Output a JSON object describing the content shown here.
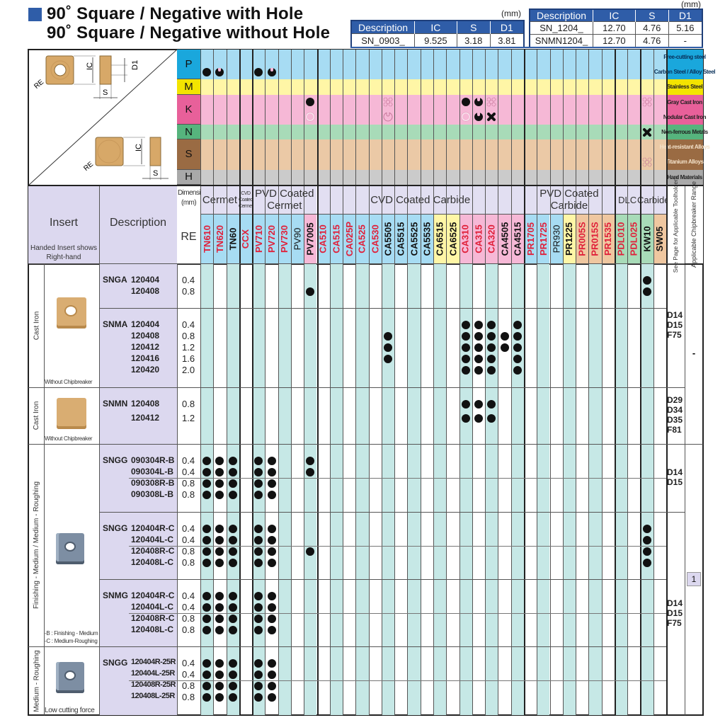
{
  "title": {
    "line1": "90˚ Square / Negative with Hole",
    "line2": "90˚ Square / Negative without Hole"
  },
  "dim_table_1": {
    "unit": "(mm)",
    "headers": [
      "Description",
      "IC",
      "S",
      "D1"
    ],
    "rows": [
      [
        "SN_0903_",
        "9.525",
        "3.18",
        "3.81"
      ]
    ]
  },
  "dim_table_2": {
    "unit": "(mm)",
    "headers": [
      "Description",
      "IC",
      "S",
      "D1"
    ],
    "rows": [
      [
        "SN_1204_",
        "12.70",
        "4.76",
        "5.16"
      ],
      [
        "SNMN1204_",
        "12.70",
        "4.76",
        "-"
      ]
    ]
  },
  "diagram": {
    "ic": "IC",
    "d1": "D1",
    "s": "S",
    "re": "RE"
  },
  "materials": [
    {
      "letter": "P",
      "color": "#1aa7dc",
      "light": "#a7dcf3",
      "label_color": "#1aa7dc",
      "rows": [
        {
          "label": "Free-cutting steel",
          "marks": {}
        },
        {
          "label": "Carbon Steel / Alloy Steel",
          "marks": {
            "TN610": "full",
            "TN620": "notch",
            "PV710": "full",
            "PV720": "notch"
          }
        }
      ]
    },
    {
      "letter": "M",
      "color": "#f3e400",
      "light": "#fff6a6",
      "label_color": "#f3e400",
      "rows": [
        {
          "label": "Stainless Steel",
          "marks": {}
        }
      ]
    },
    {
      "letter": "K",
      "color": "#e8609a",
      "light": "#f6b8d6",
      "label_color": "#e8609a",
      "rows": [
        {
          "label": "Gray Cast Iron",
          "marks": {
            "PV7005": "full",
            "CA5505": "dotted-cross",
            "CA310": "full",
            "CA315": "notch",
            "CA320": "dotted-cross",
            "KW10": "dotted-cross"
          }
        },
        {
          "label": "Nodular Cast Iron",
          "marks": {
            "PV7005": "outline",
            "CA5505": "outline-notch",
            "CA310": "outline",
            "CA315": "notch",
            "CA320": "cross"
          }
        }
      ]
    },
    {
      "letter": "N",
      "color": "#56b47d",
      "light": "#a8dbb8",
      "label_color": "#56b47d",
      "rows": [
        {
          "label": "Non-ferrous Metals",
          "marks": {
            "KW10": "cross"
          }
        }
      ]
    },
    {
      "letter": "S",
      "color": "#9a6b43",
      "light": "#ebc9a6",
      "label_color": "#9a6b43",
      "rows": [
        {
          "label": "Heat-resistant Alloys",
          "marks": {}
        },
        {
          "label": "Titanium Alloys",
          "marks": {
            "KW10": "dotted-cross"
          }
        }
      ]
    },
    {
      "letter": "H",
      "color": "#a9a9a9",
      "light": "#cbcbcb",
      "label_color": "#a9a9a9",
      "rows": [
        {
          "label": "Hard Materials",
          "marks": {}
        }
      ]
    }
  ],
  "header": {
    "insert": "Insert",
    "insert_note": "Handed Insert shows Right-hand",
    "description": "Description",
    "dimension": "Dimension (mm)",
    "re": "RE",
    "see_page": "See Page for Applicable Toolholders",
    "chipbreaker_range": "Applicable Chipbreaker Range",
    "groups": [
      {
        "label": "Cermet",
        "span": 3
      },
      {
        "label": "CVD Coated Cermet",
        "span": 1
      },
      {
        "label": "PVD Coated Cermet",
        "span": 5
      },
      {
        "label": "CVD Coated Carbide",
        "span": 16
      },
      {
        "label": "PVD Coated Carbide",
        "span": 7
      },
      {
        "label": "DLC",
        "span": 2
      },
      {
        "label": "Carbide",
        "span": 2
      }
    ]
  },
  "grade_colors": {
    "blue": "#a7dcf3",
    "pink": "#f6b8d6",
    "yellow": "#fff6a6",
    "tan": "#efc7a0",
    "green": "#a8dbb8",
    "red_text": "#e0203a",
    "black_text": "#111111",
    "column_shade": "#c6e8e6"
  },
  "grades": [
    {
      "name": "TN610",
      "bg": "blue",
      "text": "red"
    },
    {
      "name": "TN620",
      "bg": "blue",
      "text": "red"
    },
    {
      "name": "TN60",
      "bg": "blue",
      "text": "black"
    },
    {
      "name": "CCX",
      "bg": "blue",
      "text": "red"
    },
    {
      "name": "PV710",
      "bg": "blue",
      "text": "red"
    },
    {
      "name": "PV720",
      "bg": "blue",
      "text": "red"
    },
    {
      "name": "PV730",
      "bg": "blue",
      "text": "red"
    },
    {
      "name": "PV90",
      "bg": "blue",
      "text": "black-light"
    },
    {
      "name": "PV7005",
      "bg": "pink",
      "text": "black"
    },
    {
      "name": "CA510",
      "bg": "blue",
      "text": "red"
    },
    {
      "name": "CA515",
      "bg": "blue",
      "text": "red"
    },
    {
      "name": "CA025P",
      "bg": "blue",
      "text": "red"
    },
    {
      "name": "CA525",
      "bg": "blue",
      "text": "red"
    },
    {
      "name": "CA530",
      "bg": "blue",
      "text": "red"
    },
    {
      "name": "CA5505",
      "bg": "blue",
      "text": "black"
    },
    {
      "name": "CA5515",
      "bg": "blue",
      "text": "black"
    },
    {
      "name": "CA5525",
      "bg": "blue",
      "text": "black"
    },
    {
      "name": "CA5535",
      "bg": "blue",
      "text": "black"
    },
    {
      "name": "CA6515",
      "bg": "yellow",
      "text": "black"
    },
    {
      "name": "CA6525",
      "bg": "yellow",
      "text": "black"
    },
    {
      "name": "CA310",
      "bg": "pink",
      "text": "red"
    },
    {
      "name": "CA315",
      "bg": "pink",
      "text": "red"
    },
    {
      "name": "CA320",
      "bg": "pink",
      "text": "red"
    },
    {
      "name": "CA4505",
      "bg": "pink",
      "text": "black"
    },
    {
      "name": "CA4515",
      "bg": "pink",
      "text": "black"
    },
    {
      "name": "PR1705",
      "bg": "blue",
      "text": "red"
    },
    {
      "name": "PR1725",
      "bg": "blue",
      "text": "red"
    },
    {
      "name": "PR930",
      "bg": "blue",
      "text": "black-light"
    },
    {
      "name": "PR1225",
      "bg": "yellow",
      "text": "black"
    },
    {
      "name": "PR005S",
      "bg": "tan",
      "text": "red"
    },
    {
      "name": "PR015S",
      "bg": "tan",
      "text": "red"
    },
    {
      "name": "PR1535",
      "bg": "tan",
      "text": "red"
    },
    {
      "name": "PDL010",
      "bg": "green",
      "text": "red"
    },
    {
      "name": "PDL025",
      "bg": "green",
      "text": "red"
    },
    {
      "name": "KW10",
      "bg": "green",
      "text": "black"
    },
    {
      "name": "SW05",
      "bg": "tan",
      "text": "black"
    }
  ],
  "categories": [
    {
      "label": "Cast Iron",
      "image": "gold-with-hole",
      "caption": [
        "Without Chipbreaker"
      ]
    },
    {
      "label": "Cast Iron",
      "image": "gold-without-hole",
      "caption": [
        "Without Chipbreaker"
      ]
    },
    {
      "label": "Finishing - Medium / Medium - Roughing",
      "image": "steel-with-chipbreaker",
      "caption": [
        "-B : Finishing - Medium",
        "-C : Medium-Roughing"
      ]
    },
    {
      "label": "Medium - Roughing",
      "image": "steel-low-force",
      "caption": [
        "Low cutting force"
      ]
    }
  ],
  "groups": [
    {
      "series": "SNGA",
      "rows": [
        {
          "code": "120404",
          "re": "0.4",
          "dots": [
            "KW10"
          ]
        },
        {
          "code": "120408",
          "re": "0.8",
          "dots": [
            "PV7005",
            "KW10"
          ]
        }
      ]
    },
    {
      "series": "SNMA",
      "rows": [
        {
          "code": "120404",
          "re": "0.4",
          "dots": [
            "CA310",
            "CA315",
            "CA320",
            "CA4515"
          ]
        },
        {
          "code": "120408",
          "re": "0.8",
          "dots": [
            "CA5505",
            "CA310",
            "CA315",
            "CA320",
            "CA4505",
            "CA4515"
          ]
        },
        {
          "code": "120412",
          "re": "1.2",
          "dots": [
            "CA5505",
            "CA310",
            "CA315",
            "CA320",
            "CA4505",
            "CA4515"
          ]
        },
        {
          "code": "120416",
          "re": "1.6",
          "dots": [
            "CA5505",
            "CA310",
            "CA315",
            "CA320",
            "CA4515"
          ]
        },
        {
          "code": "120420",
          "re": "2.0",
          "dots": [
            "CA310",
            "CA315",
            "CA320",
            "CA4515"
          ]
        }
      ]
    },
    {
      "series": "SNMN",
      "rows": [
        {
          "code": "120408",
          "re": "0.8",
          "dots": [
            "CA310",
            "CA315",
            "CA320"
          ]
        },
        {
          "code": "120412",
          "re": "1.2",
          "dots": [
            "CA310",
            "CA315",
            "CA320"
          ]
        }
      ]
    },
    {
      "series": "SNGG",
      "rows": [
        {
          "code": "090304R-B",
          "re": "0.4",
          "dots": [
            "TN610",
            "TN620",
            "TN60",
            "PV710",
            "PV720",
            "PV7005"
          ]
        },
        {
          "code": "090304L-B",
          "re": "0.4",
          "dots": [
            "TN610",
            "TN620",
            "TN60",
            "PV710",
            "PV720",
            "PV7005"
          ]
        },
        {
          "code": "090308R-B",
          "re": "0.8",
          "dots": [
            "TN610",
            "TN620",
            "TN60",
            "PV710",
            "PV720"
          ]
        },
        {
          "code": "090308L-B",
          "re": "0.8",
          "dots": [
            "TN610",
            "TN620",
            "TN60",
            "PV710",
            "PV720"
          ]
        }
      ]
    },
    {
      "series": "SNGG",
      "rows": [
        {
          "code": "120404R-C",
          "re": "0.4",
          "dots": [
            "TN610",
            "TN620",
            "TN60",
            "PV710",
            "PV720",
            "KW10"
          ]
        },
        {
          "code": "120404L-C",
          "re": "0.4",
          "dots": [
            "TN610",
            "TN620",
            "TN60",
            "PV710",
            "PV720",
            "KW10"
          ]
        },
        {
          "code": "120408R-C",
          "re": "0.8",
          "dots": [
            "TN610",
            "TN620",
            "TN60",
            "PV710",
            "PV720",
            "PV7005",
            "KW10"
          ]
        },
        {
          "code": "120408L-C",
          "re": "0.8",
          "dots": [
            "TN610",
            "TN620",
            "TN60",
            "PV710",
            "PV720",
            "KW10"
          ]
        }
      ]
    },
    {
      "series": "SNMG",
      "rows": [
        {
          "code": "120404R-C",
          "re": "0.4",
          "dots": [
            "TN610",
            "TN620",
            "TN60",
            "PV710",
            "PV720"
          ]
        },
        {
          "code": "120404L-C",
          "re": "0.4",
          "dots": [
            "TN610",
            "TN620",
            "TN60",
            "PV710",
            "PV720"
          ]
        },
        {
          "code": "120408R-C",
          "re": "0.8",
          "dots": [
            "TN610",
            "TN620",
            "TN60",
            "PV710",
            "PV720"
          ]
        },
        {
          "code": "120408L-C",
          "re": "0.8",
          "dots": [
            "TN610",
            "TN620",
            "TN60",
            "PV710",
            "PV720"
          ]
        }
      ]
    },
    {
      "series": "SNGG",
      "rows": [
        {
          "code": "120404R-25R",
          "re": "0.4",
          "dots": [
            "TN610",
            "TN620",
            "TN60",
            "PV710",
            "PV720"
          ]
        },
        {
          "code": "120404L-25R",
          "re": "0.4",
          "dots": [
            "TN610",
            "TN620",
            "TN60",
            "PV710",
            "PV720"
          ]
        },
        {
          "code": "120408R-25R",
          "re": "0.8",
          "dots": [
            "TN610",
            "TN620",
            "TN60",
            "PV710",
            "PV720"
          ]
        },
        {
          "code": "120408L-25R",
          "re": "0.8",
          "dots": [
            "TN610",
            "TN620",
            "TN60",
            "PV710",
            "PV720"
          ]
        }
      ]
    }
  ],
  "see_page": [
    [
      "D14",
      "D15",
      "F75"
    ],
    [
      "D29",
      "D34",
      "D35",
      "F81"
    ],
    [
      "D14",
      "D15"
    ],
    [
      "D14",
      "D15",
      "F75"
    ]
  ],
  "chipbreaker_range": [
    "-",
    "1"
  ]
}
